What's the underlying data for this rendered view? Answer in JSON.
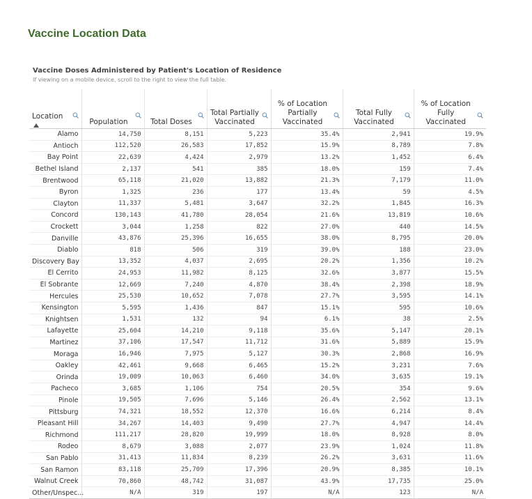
{
  "header": {
    "title": "Vaccine Location Data"
  },
  "table": {
    "title": "Vaccine Doses Administered by Patient's Location of Residence",
    "note": "If viewing on a mobile device, scroll to the right to view the full table.",
    "columns": [
      "Location",
      "Population",
      "Total Doses",
      "Total Partially Vaccinated",
      "% of Location Partially Vaccinated",
      "Total Fully Vaccinated",
      "% of Location Fully Vaccinated"
    ],
    "rows": [
      [
        "Alamo",
        "14,750",
        "8,151",
        "5,223",
        "35.4%",
        "2,941",
        "19.9%"
      ],
      [
        "Antioch",
        "112,520",
        "26,583",
        "17,852",
        "15.9%",
        "8,789",
        "7.8%"
      ],
      [
        "Bay Point",
        "22,639",
        "4,424",
        "2,979",
        "13.2%",
        "1,452",
        "6.4%"
      ],
      [
        "Bethel Island",
        "2,137",
        "541",
        "385",
        "18.0%",
        "159",
        "7.4%"
      ],
      [
        "Brentwood",
        "65,118",
        "21,020",
        "13,882",
        "21.3%",
        "7,179",
        "11.0%"
      ],
      [
        "Byron",
        "1,325",
        "236",
        "177",
        "13.4%",
        "59",
        "4.5%"
      ],
      [
        "Clayton",
        "11,337",
        "5,481",
        "3,647",
        "32.2%",
        "1,845",
        "16.3%"
      ],
      [
        "Concord",
        "130,143",
        "41,780",
        "28,054",
        "21.6%",
        "13,819",
        "10.6%"
      ],
      [
        "Crockett",
        "3,044",
        "1,258",
        "822",
        "27.0%",
        "440",
        "14.5%"
      ],
      [
        "Danville",
        "43,876",
        "25,396",
        "16,655",
        "38.0%",
        "8,795",
        "20.0%"
      ],
      [
        "Diablo",
        "818",
        "506",
        "319",
        "39.0%",
        "188",
        "23.0%"
      ],
      [
        "Discovery Bay",
        "13,352",
        "4,037",
        "2,695",
        "20.2%",
        "1,356",
        "10.2%"
      ],
      [
        "El Cerrito",
        "24,953",
        "11,982",
        "8,125",
        "32.6%",
        "3,877",
        "15.5%"
      ],
      [
        "El Sobrante",
        "12,669",
        "7,240",
        "4,870",
        "38.4%",
        "2,398",
        "18.9%"
      ],
      [
        "Hercules",
        "25,530",
        "10,652",
        "7,078",
        "27.7%",
        "3,595",
        "14.1%"
      ],
      [
        "Kensington",
        "5,595",
        "1,436",
        "847",
        "15.1%",
        "595",
        "10.6%"
      ],
      [
        "Knightsen",
        "1,531",
        "132",
        "94",
        "6.1%",
        "38",
        "2.5%"
      ],
      [
        "Lafayette",
        "25,604",
        "14,210",
        "9,118",
        "35.6%",
        "5,147",
        "20.1%"
      ],
      [
        "Martinez",
        "37,106",
        "17,547",
        "11,712",
        "31.6%",
        "5,889",
        "15.9%"
      ],
      [
        "Moraga",
        "16,946",
        "7,975",
        "5,127",
        "30.3%",
        "2,868",
        "16.9%"
      ],
      [
        "Oakley",
        "42,461",
        "9,668",
        "6,465",
        "15.2%",
        "3,231",
        "7.6%"
      ],
      [
        "Orinda",
        "19,009",
        "10,063",
        "6,460",
        "34.0%",
        "3,635",
        "19.1%"
      ],
      [
        "Pacheco",
        "3,685",
        "1,106",
        "754",
        "20.5%",
        "354",
        "9.6%"
      ],
      [
        "Pinole",
        "19,505",
        "7,696",
        "5,146",
        "26.4%",
        "2,562",
        "13.1%"
      ],
      [
        "Pittsburg",
        "74,321",
        "18,552",
        "12,370",
        "16.6%",
        "6,214",
        "8.4%"
      ],
      [
        "Pleasant Hill",
        "34,267",
        "14,403",
        "9,490",
        "27.7%",
        "4,947",
        "14.4%"
      ],
      [
        "Richmond",
        "111,217",
        "28,820",
        "19,999",
        "18.0%",
        "8,928",
        "8.0%"
      ],
      [
        "Rodeo",
        "8,679",
        "3,088",
        "2,077",
        "23.9%",
        "1,024",
        "11.8%"
      ],
      [
        "San Pablo",
        "31,413",
        "11,834",
        "8,239",
        "26.2%",
        "3,631",
        "11.6%"
      ],
      [
        "San Ramon",
        "83,118",
        "25,709",
        "17,396",
        "20.9%",
        "8,385",
        "10.1%"
      ],
      [
        "Walnut Creek",
        "70,860",
        "48,742",
        "31,087",
        "43.9%",
        "17,735",
        "25.0%"
      ],
      [
        "Other/Unspec...",
        "N/A",
        "319",
        "197",
        "N/A",
        "123",
        "N/A"
      ]
    ]
  }
}
